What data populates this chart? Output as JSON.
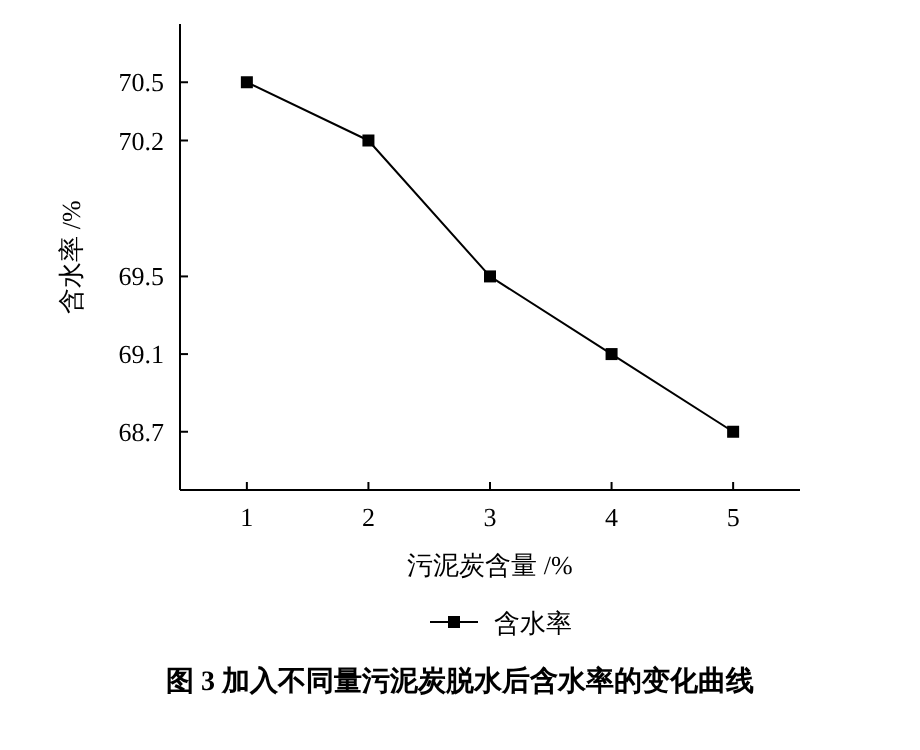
{
  "chart_data": {
    "type": "line",
    "title": "图 3  加入不同量污泥炭脱水后含水率的变化曲线",
    "xlabel": "污泥炭含量 /%",
    "ylabel": "含水率 /%",
    "x": [
      1,
      2,
      3,
      4,
      5
    ],
    "series": [
      {
        "name": "含水率",
        "color": "#000000",
        "values": [
          70.5,
          70.2,
          69.5,
          69.1,
          68.7
        ]
      }
    ],
    "xlim": [
      0.45,
      5.55
    ],
    "ylim": [
      68.4,
      70.8
    ],
    "xticks": [
      1,
      2,
      3,
      4,
      5
    ],
    "yticks": [
      70.5,
      70.2,
      69.5,
      69.1,
      68.7
    ],
    "marker": "square",
    "line_style": "solid",
    "legend": "bottom",
    "grid": false
  }
}
